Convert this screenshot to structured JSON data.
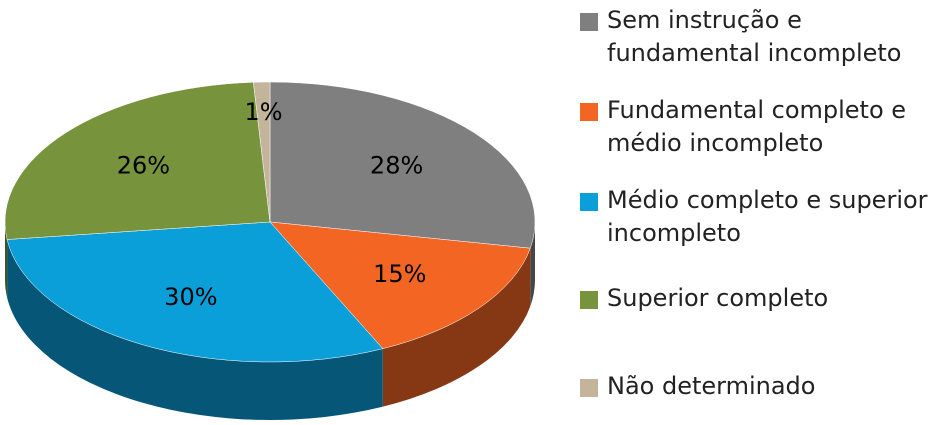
{
  "chart_data": {
    "type": "pie3d",
    "categories": [
      "Sem instrução e fundamental incompleto",
      "Fundamental completo e médio incompleto",
      "Médio completo e superior incompleto",
      "Superior completo",
      "Não determinado"
    ],
    "values": [
      28,
      15,
      30,
      26,
      1
    ],
    "value_labels": [
      "28%",
      "15%",
      "30%",
      "26%",
      "1%"
    ],
    "colors": [
      "#7f7f7f",
      "#f26522",
      "#0a9fd9",
      "#77933c",
      "#c4b49a"
    ],
    "legend": "right"
  }
}
